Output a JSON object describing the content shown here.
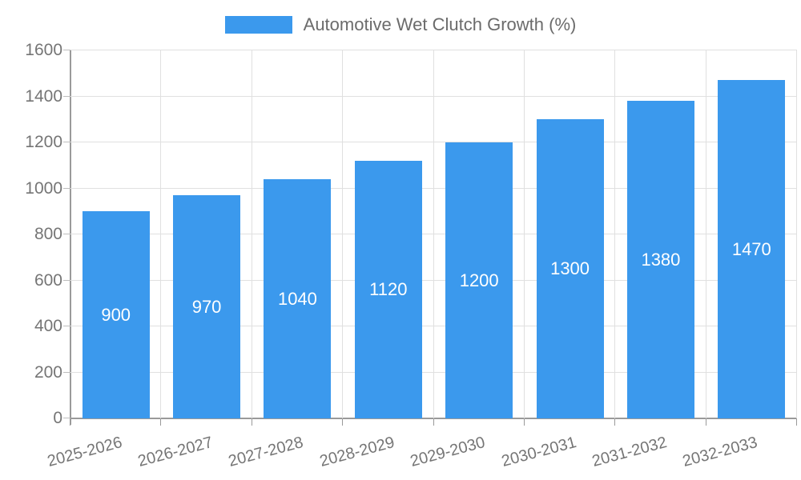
{
  "legend": {
    "label": "Automotive Wet Clutch Growth (%)"
  },
  "chart_data": {
    "type": "bar",
    "title": "Automotive Wet Clutch Growth (%)",
    "categories": [
      "2025-2026",
      "2026-2027",
      "2027-2028",
      "2028-2029",
      "2029-2030",
      "2030-2031",
      "2031-2032",
      "2032-2033"
    ],
    "values": [
      900,
      970,
      1040,
      1120,
      1200,
      1300,
      1380,
      1470
    ],
    "value_labels": [
      "900",
      "970",
      "1040",
      "1120",
      "1200",
      "1300",
      "1380",
      "1470"
    ],
    "xlabel": "",
    "ylabel": "",
    "ylim": [
      0,
      1600
    ],
    "yticks": [
      0,
      200,
      400,
      600,
      800,
      1000,
      1200,
      1400,
      1600
    ],
    "grid": true,
    "legend_position": "top",
    "colors": {
      "bar": "#3b99ed",
      "bar_value_text": "#ffffff",
      "axis_label": "#757575",
      "legend_text": "#6b6b6b",
      "grid_line": "#e0e0e0",
      "axis_line": "#9a9a9a"
    }
  }
}
